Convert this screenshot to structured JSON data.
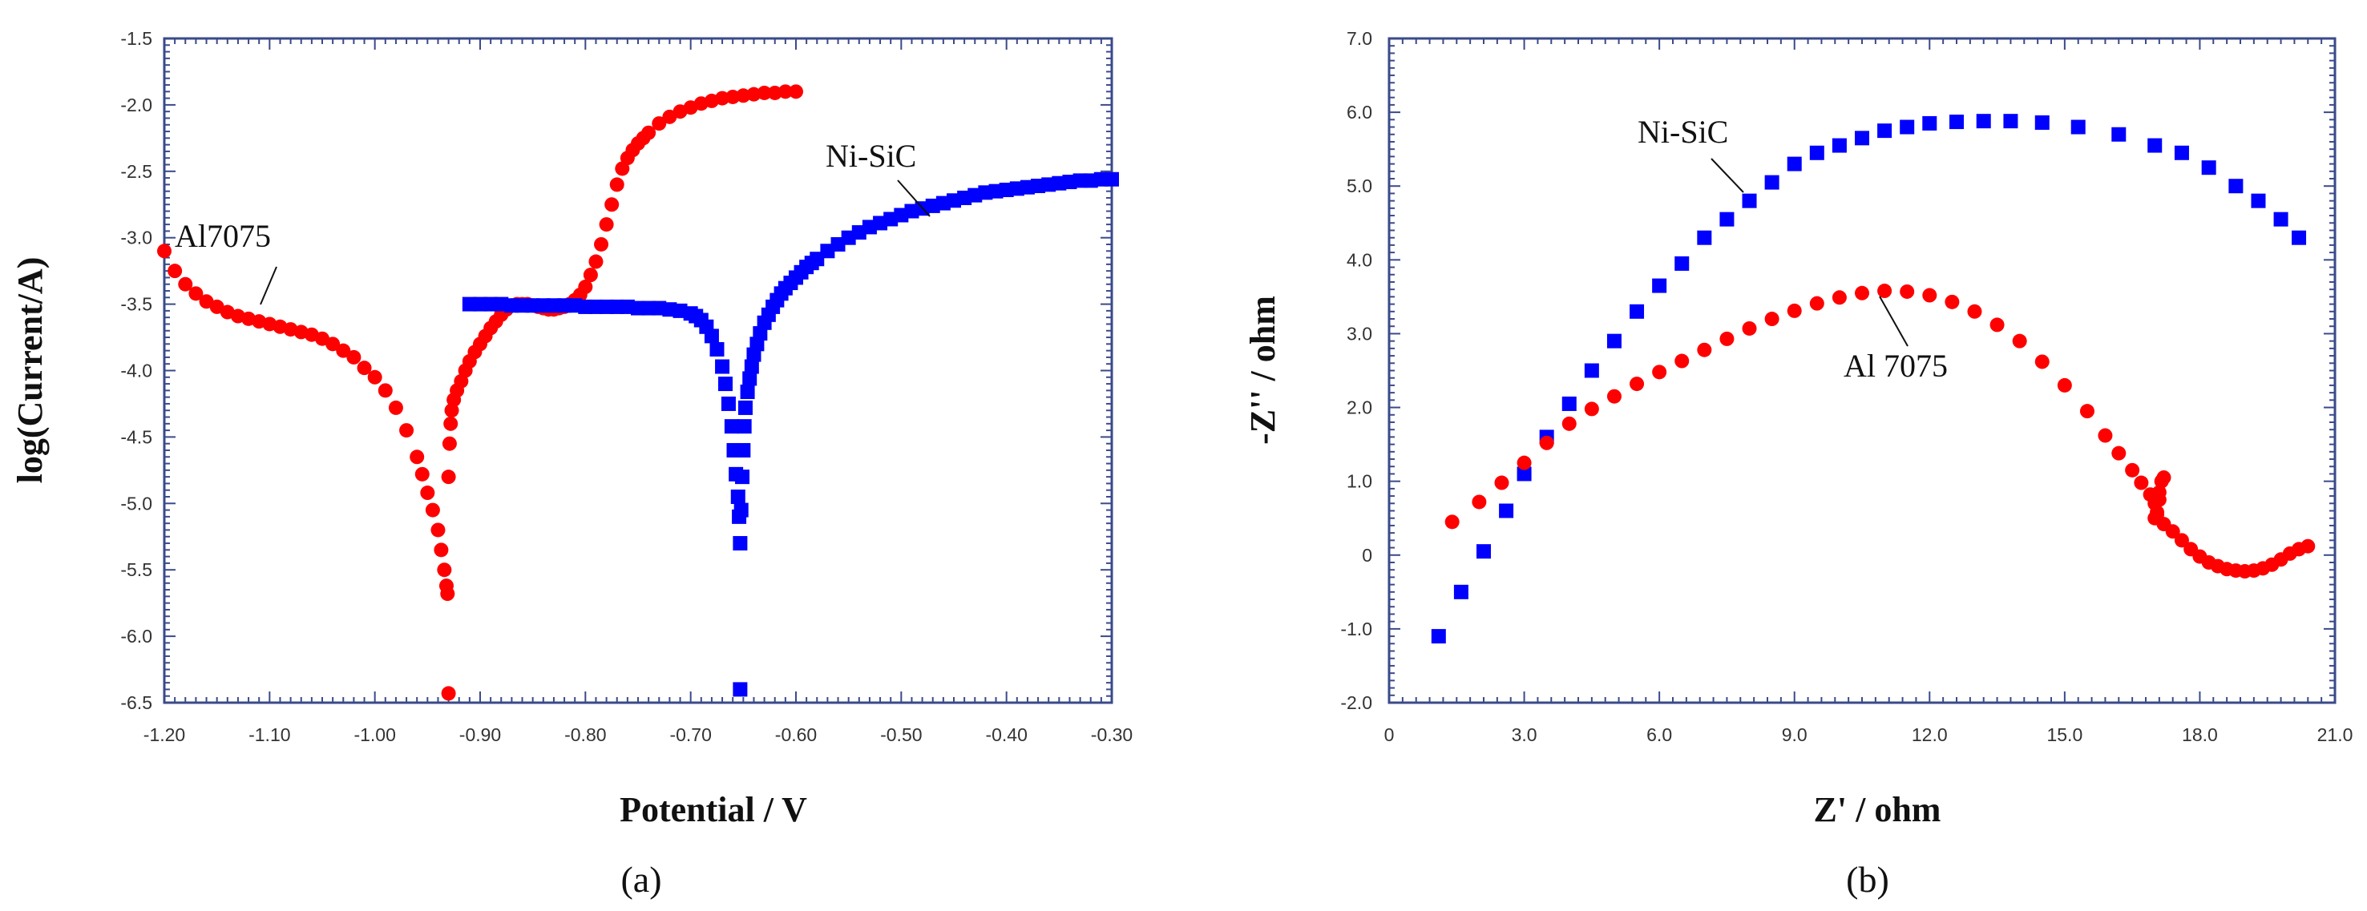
{
  "chart_data": [
    {
      "type": "scatter",
      "panel_label": "(a)",
      "title": "",
      "xlabel": "Potential / V",
      "ylabel": "log(Current/A)",
      "xlim": [
        -1.2,
        -0.3
      ],
      "ylim": [
        -6.5,
        -1.5
      ],
      "xticks": [
        -1.2,
        -1.1,
        -1.0,
        -0.9,
        -0.8,
        -0.7,
        -0.6,
        -0.5,
        -0.4,
        -0.3
      ],
      "xtick_labels": [
        "-1.20",
        "-1.10",
        "-1.00",
        "-0.90",
        "-0.80",
        "-0.70",
        "-0.60",
        "-0.50",
        "-0.40",
        "-0.30"
      ],
      "yticks": [
        -1.5,
        -2.0,
        -2.5,
        -3.0,
        -3.5,
        -4.0,
        -4.5,
        -5.0,
        -5.5,
        -6.0,
        -6.5
      ],
      "ytick_labels": [
        "-1.5",
        "-2.0",
        "-2.5",
        "-3.0",
        "-3.5",
        "-4.0",
        "-4.5",
        "-5.0",
        "-5.5",
        "-6.0",
        "-6.5"
      ],
      "grid": false,
      "series": [
        {
          "name": "Al7075",
          "color": "#ff0000",
          "marker": "circle",
          "x": [
            -1.2,
            -1.19,
            -1.18,
            -1.17,
            -1.16,
            -1.15,
            -1.14,
            -1.13,
            -1.12,
            -1.11,
            -1.1,
            -1.09,
            -1.08,
            -1.07,
            -1.06,
            -1.05,
            -1.04,
            -1.03,
            -1.02,
            -1.01,
            -1.0,
            -0.99,
            -0.98,
            -0.97,
            -0.96,
            -0.955,
            -0.95,
            -0.945,
            -0.94,
            -0.937,
            -0.934,
            -0.932,
            -0.931,
            -0.93,
            -0.93,
            -0.929,
            -0.928,
            -0.927,
            -0.925,
            -0.922,
            -0.918,
            -0.914,
            -0.91,
            -0.905,
            -0.9,
            -0.895,
            -0.89,
            -0.885,
            -0.88,
            -0.875,
            -0.87,
            -0.865,
            -0.86,
            -0.855,
            -0.85,
            -0.845,
            -0.84,
            -0.835,
            -0.83,
            -0.825,
            -0.82,
            -0.815,
            -0.81,
            -0.805,
            -0.8,
            -0.795,
            -0.79,
            -0.785,
            -0.78,
            -0.775,
            -0.77,
            -0.765,
            -0.76,
            -0.755,
            -0.75,
            -0.745,
            -0.74,
            -0.73,
            -0.72,
            -0.71,
            -0.7,
            -0.69,
            -0.68,
            -0.67,
            -0.66,
            -0.65,
            -0.64,
            -0.63,
            -0.62,
            -0.61,
            -0.6
          ],
          "y": [
            -3.1,
            -3.25,
            -3.35,
            -3.42,
            -3.48,
            -3.52,
            -3.56,
            -3.59,
            -3.61,
            -3.63,
            -3.65,
            -3.67,
            -3.69,
            -3.71,
            -3.73,
            -3.76,
            -3.8,
            -3.85,
            -3.9,
            -3.98,
            -4.05,
            -4.15,
            -4.28,
            -4.45,
            -4.65,
            -4.78,
            -4.92,
            -5.05,
            -5.2,
            -5.35,
            -5.5,
            -5.62,
            -5.68,
            -6.43,
            -4.8,
            -4.55,
            -4.4,
            -4.3,
            -4.22,
            -4.15,
            -4.08,
            -4.0,
            -3.93,
            -3.86,
            -3.8,
            -3.74,
            -3.68,
            -3.63,
            -3.58,
            -3.54,
            -3.51,
            -3.5,
            -3.5,
            -3.5,
            -3.51,
            -3.52,
            -3.53,
            -3.54,
            -3.54,
            -3.53,
            -3.52,
            -3.5,
            -3.47,
            -3.43,
            -3.37,
            -3.28,
            -3.18,
            -3.05,
            -2.9,
            -2.75,
            -2.6,
            -2.48,
            -2.4,
            -2.34,
            -2.29,
            -2.25,
            -2.21,
            -2.14,
            -2.09,
            -2.05,
            -2.02,
            -1.99,
            -1.97,
            -1.95,
            -1.94,
            -1.93,
            -1.92,
            -1.91,
            -1.91,
            -1.9,
            -1.9
          ]
        },
        {
          "name": "Ni-SiC",
          "color": "#0000ff",
          "marker": "square",
          "x": [
            -0.91,
            -0.9,
            -0.89,
            -0.88,
            -0.87,
            -0.86,
            -0.85,
            -0.84,
            -0.83,
            -0.82,
            -0.81,
            -0.8,
            -0.79,
            -0.78,
            -0.77,
            -0.76,
            -0.75,
            -0.74,
            -0.73,
            -0.72,
            -0.71,
            -0.7,
            -0.695,
            -0.69,
            -0.685,
            -0.68,
            -0.675,
            -0.67,
            -0.667,
            -0.664,
            -0.661,
            -0.659,
            -0.657,
            -0.655,
            -0.654,
            -0.653,
            -0.653,
            -0.652,
            -0.651,
            -0.65,
            -0.649,
            -0.648,
            -0.646,
            -0.644,
            -0.642,
            -0.64,
            -0.637,
            -0.634,
            -0.63,
            -0.626,
            -0.622,
            -0.618,
            -0.614,
            -0.61,
            -0.605,
            -0.6,
            -0.595,
            -0.59,
            -0.585,
            -0.58,
            -0.57,
            -0.56,
            -0.55,
            -0.54,
            -0.53,
            -0.52,
            -0.51,
            -0.5,
            -0.49,
            -0.48,
            -0.47,
            -0.46,
            -0.45,
            -0.44,
            -0.43,
            -0.42,
            -0.41,
            -0.4,
            -0.39,
            -0.38,
            -0.37,
            -0.36,
            -0.35,
            -0.34,
            -0.33,
            -0.32,
            -0.31,
            -0.3
          ],
          "y": [
            -3.5,
            -3.5,
            -3.5,
            -3.5,
            -3.51,
            -3.51,
            -3.51,
            -3.51,
            -3.51,
            -3.51,
            -3.51,
            -3.52,
            -3.52,
            -3.52,
            -3.52,
            -3.52,
            -3.53,
            -3.53,
            -3.53,
            -3.54,
            -3.55,
            -3.57,
            -3.59,
            -3.62,
            -3.67,
            -3.74,
            -3.84,
            -3.97,
            -4.1,
            -4.25,
            -4.42,
            -4.6,
            -4.78,
            -4.95,
            -5.1,
            -5.3,
            -6.4,
            -5.05,
            -4.8,
            -4.6,
            -4.42,
            -4.28,
            -4.16,
            -4.06,
            -3.97,
            -3.88,
            -3.8,
            -3.72,
            -3.64,
            -3.58,
            -3.52,
            -3.47,
            -3.42,
            -3.38,
            -3.34,
            -3.3,
            -3.26,
            -3.22,
            -3.19,
            -3.16,
            -3.1,
            -3.05,
            -3.0,
            -2.96,
            -2.92,
            -2.89,
            -2.86,
            -2.83,
            -2.8,
            -2.78,
            -2.76,
            -2.74,
            -2.72,
            -2.7,
            -2.68,
            -2.66,
            -2.65,
            -2.64,
            -2.63,
            -2.62,
            -2.61,
            -2.6,
            -2.59,
            -2.58,
            -2.57,
            -2.57,
            -2.56,
            -2.56
          ]
        }
      ],
      "annotations": [
        {
          "text": "Al7075",
          "series": "Al7075"
        },
        {
          "text": "Ni-SiC",
          "series": "Ni-SiC"
        }
      ]
    },
    {
      "type": "scatter",
      "panel_label": "(b)",
      "title": "",
      "xlabel": "Z' / ohm",
      "ylabel": "-Z'' / ohm",
      "xlim": [
        0,
        21
      ],
      "ylim": [
        -2,
        7
      ],
      "xticks": [
        0,
        3,
        6,
        9,
        12,
        15,
        18,
        21
      ],
      "xtick_labels": [
        "0",
        "3.0",
        "6.0",
        "9.0",
        "12.0",
        "15.0",
        "18.0",
        "21.0"
      ],
      "yticks": [
        7,
        6,
        5,
        4,
        3,
        2,
        1,
        0,
        -1,
        -2
      ],
      "ytick_labels": [
        "7.0",
        "6.0",
        "5.0",
        "4.0",
        "3.0",
        "2.0",
        "1.0",
        "0",
        "-1.0",
        "-2.0"
      ],
      "grid": false,
      "series": [
        {
          "name": "Ni-SiC",
          "color": "#0000ff",
          "marker": "square",
          "x": [
            1.1,
            1.6,
            2.1,
            2.6,
            3.0,
            3.5,
            4.0,
            4.5,
            5.0,
            5.5,
            6.0,
            6.5,
            7.0,
            7.5,
            8.0,
            8.5,
            9.0,
            9.5,
            10.0,
            10.5,
            11.0,
            11.5,
            12.0,
            12.6,
            13.2,
            13.8,
            14.5,
            15.3,
            16.2,
            17.0,
            17.6,
            18.2,
            18.8,
            19.3,
            19.8,
            20.2
          ],
          "y": [
            -1.1,
            -0.5,
            0.05,
            0.6,
            1.1,
            1.6,
            2.05,
            2.5,
            2.9,
            3.3,
            3.65,
            3.95,
            4.3,
            4.55,
            4.8,
            5.05,
            5.3,
            5.45,
            5.55,
            5.65,
            5.75,
            5.8,
            5.85,
            5.87,
            5.88,
            5.88,
            5.86,
            5.8,
            5.7,
            5.55,
            5.45,
            5.25,
            5.0,
            4.8,
            4.55,
            4.3
          ]
        },
        {
          "name": "Al 7075",
          "color": "#ff0000",
          "marker": "circle",
          "x": [
            1.4,
            2.0,
            2.5,
            3.0,
            3.5,
            4.0,
            4.5,
            5.0,
            5.5,
            6.0,
            6.5,
            7.0,
            7.5,
            8.0,
            8.5,
            9.0,
            9.5,
            10.0,
            10.5,
            11.0,
            11.5,
            12.0,
            12.5,
            13.0,
            13.5,
            14.0,
            14.5,
            15.0,
            15.5,
            15.9,
            16.2,
            16.5,
            16.7,
            16.9,
            17.0,
            17.05,
            17.1,
            17.15,
            17.2,
            17.1,
            17.05,
            17.0,
            17.2,
            17.4,
            17.6,
            17.8,
            18.0,
            18.2,
            18.4,
            18.6,
            18.8,
            19.0,
            19.2,
            19.4,
            19.6,
            19.8,
            20.0,
            20.2,
            20.4
          ],
          "y": [
            0.45,
            0.72,
            0.98,
            1.25,
            1.52,
            1.78,
            1.98,
            2.15,
            2.32,
            2.48,
            2.63,
            2.78,
            2.93,
            3.07,
            3.2,
            3.31,
            3.41,
            3.49,
            3.55,
            3.58,
            3.57,
            3.52,
            3.43,
            3.3,
            3.12,
            2.9,
            2.62,
            2.3,
            1.95,
            1.62,
            1.38,
            1.15,
            0.98,
            0.82,
            0.7,
            0.58,
            0.85,
            1.0,
            1.05,
            0.75,
            0.55,
            0.5,
            0.42,
            0.32,
            0.2,
            0.08,
            -0.02,
            -0.1,
            -0.15,
            -0.19,
            -0.21,
            -0.22,
            -0.21,
            -0.18,
            -0.13,
            -0.06,
            0.02,
            0.08,
            0.12
          ]
        }
      ],
      "annotations": [
        {
          "text": "Ni-SiC",
          "series": "Ni-SiC"
        },
        {
          "text": "Al 7075",
          "series": "Al 7075"
        }
      ]
    }
  ]
}
